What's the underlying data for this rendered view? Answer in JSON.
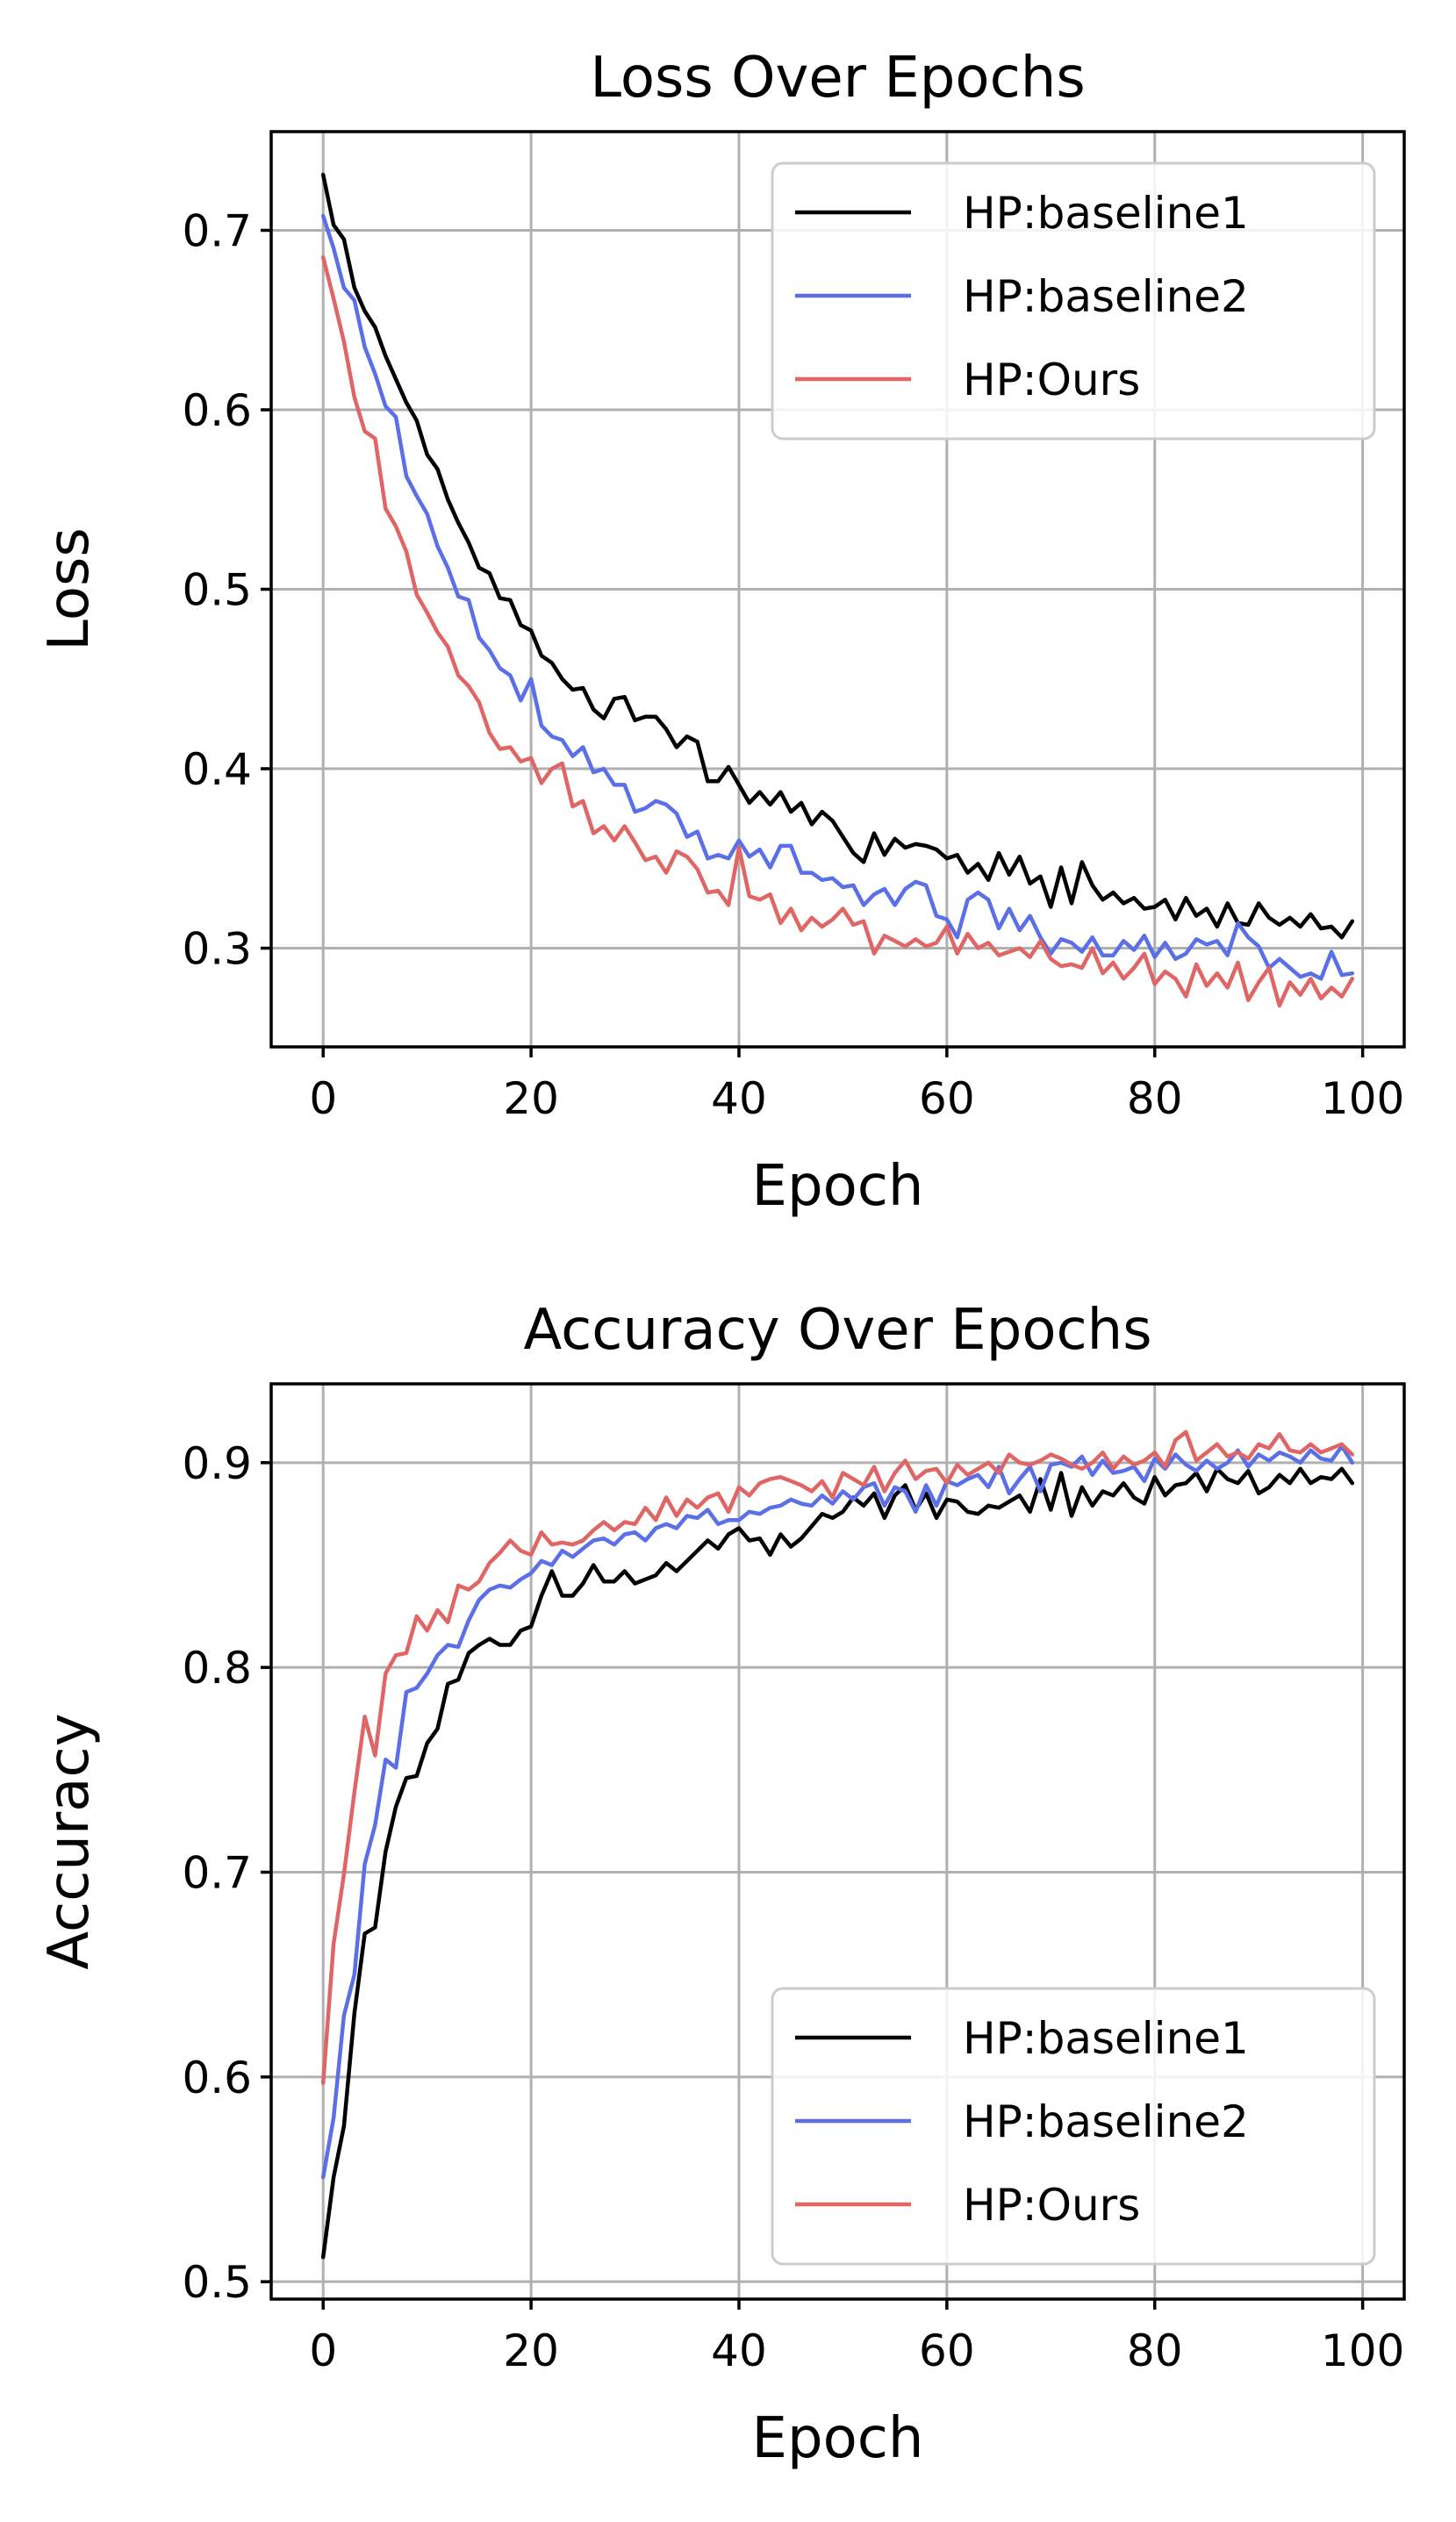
{
  "chart_data": [
    {
      "type": "line",
      "title": "Loss Over Epochs",
      "xlabel": "Epoch",
      "ylabel": "Loss",
      "xlim": [
        -5,
        104
      ],
      "ylim": [
        0.245,
        0.755
      ],
      "xticks": [
        0,
        20,
        40,
        60,
        80,
        100
      ],
      "yticks": [
        0.3,
        0.4,
        0.5,
        0.6,
        0.7
      ],
      "ytick_labels": [
        "0.3",
        "0.4",
        "0.5",
        "0.6",
        "0.7"
      ],
      "grid": true,
      "legend_position": "top-right",
      "x": [
        0,
        1,
        2,
        3,
        4,
        5,
        6,
        7,
        8,
        9,
        10,
        11,
        12,
        13,
        14,
        15,
        16,
        17,
        18,
        19,
        20,
        21,
        22,
        23,
        24,
        25,
        26,
        27,
        28,
        29,
        30,
        31,
        32,
        33,
        34,
        35,
        36,
        37,
        38,
        39,
        40,
        41,
        42,
        43,
        44,
        45,
        46,
        47,
        48,
        49,
        50,
        51,
        52,
        53,
        54,
        55,
        56,
        57,
        58,
        59,
        60,
        61,
        62,
        63,
        64,
        65,
        66,
        67,
        68,
        69,
        70,
        71,
        72,
        73,
        74,
        75,
        76,
        77,
        78,
        79,
        80,
        81,
        82,
        83,
        84,
        85,
        86,
        87,
        88,
        89,
        90,
        91,
        92,
        93,
        94,
        95,
        96,
        97,
        98,
        99
      ],
      "series": [
        {
          "name": "HP:baseline1",
          "color": "#000000",
          "values": [
            0.731,
            0.703,
            0.695,
            0.668,
            0.655,
            0.646,
            0.63,
            0.617,
            0.604,
            0.594,
            0.575,
            0.567,
            0.55,
            0.537,
            0.526,
            0.512,
            0.509,
            0.495,
            0.494,
            0.48,
            0.477,
            0.463,
            0.459,
            0.45,
            0.444,
            0.445,
            0.433,
            0.428,
            0.439,
            0.44,
            0.427,
            0.429,
            0.429,
            0.422,
            0.412,
            0.418,
            0.415,
            0.393,
            0.393,
            0.401,
            0.391,
            0.381,
            0.387,
            0.38,
            0.387,
            0.376,
            0.381,
            0.369,
            0.376,
            0.371,
            0.362,
            0.353,
            0.348,
            0.364,
            0.352,
            0.361,
            0.356,
            0.358,
            0.357,
            0.355,
            0.35,
            0.352,
            0.342,
            0.347,
            0.338,
            0.353,
            0.341,
            0.351,
            0.336,
            0.34,
            0.323,
            0.345,
            0.325,
            0.348,
            0.335,
            0.327,
            0.331,
            0.325,
            0.328,
            0.322,
            0.323,
            0.327,
            0.316,
            0.328,
            0.318,
            0.322,
            0.312,
            0.325,
            0.314,
            0.313,
            0.325,
            0.317,
            0.313,
            0.317,
            0.312,
            0.319,
            0.311,
            0.312,
            0.306,
            0.315
          ]
        },
        {
          "name": "HP:baseline2",
          "color": "#5b6fe6",
          "values": [
            0.708,
            0.69,
            0.668,
            0.661,
            0.635,
            0.62,
            0.602,
            0.596,
            0.563,
            0.552,
            0.542,
            0.524,
            0.512,
            0.496,
            0.494,
            0.473,
            0.466,
            0.456,
            0.452,
            0.438,
            0.45,
            0.424,
            0.418,
            0.416,
            0.407,
            0.412,
            0.398,
            0.4,
            0.391,
            0.391,
            0.376,
            0.378,
            0.382,
            0.38,
            0.375,
            0.362,
            0.365,
            0.35,
            0.352,
            0.35,
            0.36,
            0.351,
            0.355,
            0.345,
            0.357,
            0.357,
            0.342,
            0.342,
            0.338,
            0.339,
            0.334,
            0.335,
            0.324,
            0.33,
            0.333,
            0.324,
            0.333,
            0.337,
            0.335,
            0.318,
            0.316,
            0.306,
            0.327,
            0.331,
            0.327,
            0.311,
            0.322,
            0.31,
            0.318,
            0.306,
            0.297,
            0.305,
            0.303,
            0.298,
            0.306,
            0.296,
            0.296,
            0.304,
            0.299,
            0.307,
            0.295,
            0.303,
            0.294,
            0.297,
            0.305,
            0.302,
            0.304,
            0.296,
            0.314,
            0.306,
            0.301,
            0.289,
            0.294,
            0.289,
            0.284,
            0.286,
            0.283,
            0.298,
            0.285,
            0.286
          ]
        },
        {
          "name": "HP:Ours",
          "color": "#e06666",
          "values": [
            0.685,
            0.662,
            0.638,
            0.607,
            0.588,
            0.584,
            0.545,
            0.535,
            0.521,
            0.497,
            0.487,
            0.476,
            0.468,
            0.452,
            0.446,
            0.437,
            0.42,
            0.411,
            0.412,
            0.404,
            0.406,
            0.392,
            0.4,
            0.403,
            0.379,
            0.382,
            0.364,
            0.368,
            0.36,
            0.368,
            0.359,
            0.349,
            0.351,
            0.342,
            0.354,
            0.351,
            0.344,
            0.331,
            0.332,
            0.324,
            0.356,
            0.329,
            0.327,
            0.33,
            0.314,
            0.322,
            0.31,
            0.317,
            0.312,
            0.316,
            0.322,
            0.313,
            0.315,
            0.297,
            0.307,
            0.304,
            0.301,
            0.305,
            0.301,
            0.303,
            0.312,
            0.297,
            0.308,
            0.3,
            0.303,
            0.296,
            0.298,
            0.3,
            0.295,
            0.304,
            0.294,
            0.29,
            0.291,
            0.289,
            0.3,
            0.286,
            0.292,
            0.283,
            0.289,
            0.297,
            0.28,
            0.287,
            0.283,
            0.273,
            0.291,
            0.279,
            0.286,
            0.278,
            0.292,
            0.271,
            0.281,
            0.289,
            0.268,
            0.281,
            0.274,
            0.283,
            0.272,
            0.278,
            0.273,
            0.283
          ]
        }
      ]
    },
    {
      "type": "line",
      "title": "Accuracy Over Epochs",
      "xlabel": "Epoch",
      "ylabel": "Accuracy",
      "xlim": [
        -5,
        104
      ],
      "ylim": [
        0.4915,
        0.9385
      ],
      "xticks": [
        0,
        20,
        40,
        60,
        80,
        100
      ],
      "yticks": [
        0.5,
        0.6,
        0.7,
        0.8,
        0.9
      ],
      "ytick_labels": [
        "0.5",
        "0.6",
        "0.7",
        "0.8",
        "0.9"
      ],
      "grid": true,
      "legend_position": "bottom-right",
      "x": [
        0,
        1,
        2,
        3,
        4,
        5,
        6,
        7,
        8,
        9,
        10,
        11,
        12,
        13,
        14,
        15,
        16,
        17,
        18,
        19,
        20,
        21,
        22,
        23,
        24,
        25,
        26,
        27,
        28,
        29,
        30,
        31,
        32,
        33,
        34,
        35,
        36,
        37,
        38,
        39,
        40,
        41,
        42,
        43,
        44,
        45,
        46,
        47,
        48,
        49,
        50,
        51,
        52,
        53,
        54,
        55,
        56,
        57,
        58,
        59,
        60,
        61,
        62,
        63,
        64,
        65,
        66,
        67,
        68,
        69,
        70,
        71,
        72,
        73,
        74,
        75,
        76,
        77,
        78,
        79,
        80,
        81,
        82,
        83,
        84,
        85,
        86,
        87,
        88,
        89,
        90,
        91,
        92,
        93,
        94,
        95,
        96,
        97,
        98,
        99
      ],
      "series": [
        {
          "name": "HP:baseline1",
          "color": "#000000",
          "values": [
            0.512,
            0.551,
            0.576,
            0.631,
            0.67,
            0.673,
            0.71,
            0.732,
            0.746,
            0.747,
            0.763,
            0.77,
            0.792,
            0.794,
            0.807,
            0.811,
            0.814,
            0.811,
            0.811,
            0.818,
            0.82,
            0.835,
            0.847,
            0.835,
            0.835,
            0.841,
            0.85,
            0.842,
            0.842,
            0.847,
            0.841,
            0.843,
            0.845,
            0.851,
            0.847,
            0.852,
            0.857,
            0.862,
            0.858,
            0.865,
            0.868,
            0.862,
            0.863,
            0.855,
            0.865,
            0.859,
            0.863,
            0.869,
            0.875,
            0.873,
            0.876,
            0.883,
            0.879,
            0.885,
            0.873,
            0.884,
            0.889,
            0.877,
            0.885,
            0.873,
            0.882,
            0.881,
            0.876,
            0.875,
            0.879,
            0.878,
            0.881,
            0.884,
            0.876,
            0.892,
            0.877,
            0.895,
            0.874,
            0.888,
            0.879,
            0.886,
            0.884,
            0.89,
            0.883,
            0.88,
            0.893,
            0.884,
            0.889,
            0.89,
            0.895,
            0.886,
            0.897,
            0.892,
            0.89,
            0.896,
            0.885,
            0.888,
            0.894,
            0.89,
            0.897,
            0.89,
            0.893,
            0.892,
            0.897,
            0.89
          ]
        },
        {
          "name": "HP:baseline2",
          "color": "#5b6fe6",
          "values": [
            0.551,
            0.58,
            0.63,
            0.65,
            0.704,
            0.723,
            0.755,
            0.751,
            0.788,
            0.79,
            0.797,
            0.806,
            0.811,
            0.81,
            0.823,
            0.833,
            0.838,
            0.84,
            0.839,
            0.843,
            0.846,
            0.852,
            0.85,
            0.857,
            0.854,
            0.858,
            0.862,
            0.863,
            0.86,
            0.865,
            0.866,
            0.862,
            0.868,
            0.87,
            0.868,
            0.874,
            0.873,
            0.877,
            0.87,
            0.872,
            0.872,
            0.876,
            0.875,
            0.878,
            0.879,
            0.882,
            0.88,
            0.879,
            0.884,
            0.88,
            0.886,
            0.882,
            0.888,
            0.89,
            0.879,
            0.888,
            0.886,
            0.876,
            0.889,
            0.879,
            0.891,
            0.889,
            0.892,
            0.894,
            0.888,
            0.898,
            0.885,
            0.892,
            0.898,
            0.886,
            0.899,
            0.9,
            0.898,
            0.903,
            0.894,
            0.901,
            0.895,
            0.896,
            0.898,
            0.891,
            0.902,
            0.897,
            0.904,
            0.899,
            0.896,
            0.901,
            0.897,
            0.9,
            0.906,
            0.898,
            0.904,
            0.901,
            0.905,
            0.903,
            0.9,
            0.906,
            0.902,
            0.901,
            0.908,
            0.9
          ]
        },
        {
          "name": "HP:Ours",
          "color": "#e06666",
          "values": [
            0.597,
            0.665,
            0.699,
            0.739,
            0.776,
            0.757,
            0.797,
            0.806,
            0.807,
            0.825,
            0.818,
            0.828,
            0.822,
            0.84,
            0.838,
            0.842,
            0.851,
            0.856,
            0.862,
            0.857,
            0.855,
            0.866,
            0.86,
            0.861,
            0.86,
            0.862,
            0.867,
            0.871,
            0.867,
            0.871,
            0.87,
            0.878,
            0.872,
            0.883,
            0.874,
            0.882,
            0.878,
            0.883,
            0.885,
            0.876,
            0.888,
            0.884,
            0.89,
            0.892,
            0.893,
            0.891,
            0.889,
            0.886,
            0.891,
            0.883,
            0.895,
            0.892,
            0.889,
            0.898,
            0.886,
            0.895,
            0.901,
            0.892,
            0.896,
            0.897,
            0.89,
            0.899,
            0.894,
            0.897,
            0.9,
            0.895,
            0.904,
            0.9,
            0.899,
            0.901,
            0.904,
            0.902,
            0.899,
            0.897,
            0.9,
            0.905,
            0.897,
            0.903,
            0.899,
            0.901,
            0.905,
            0.898,
            0.911,
            0.915,
            0.901,
            0.905,
            0.909,
            0.903,
            0.905,
            0.902,
            0.909,
            0.907,
            0.914,
            0.906,
            0.905,
            0.909,
            0.905,
            0.907,
            0.909,
            0.904
          ]
        }
      ]
    }
  ]
}
